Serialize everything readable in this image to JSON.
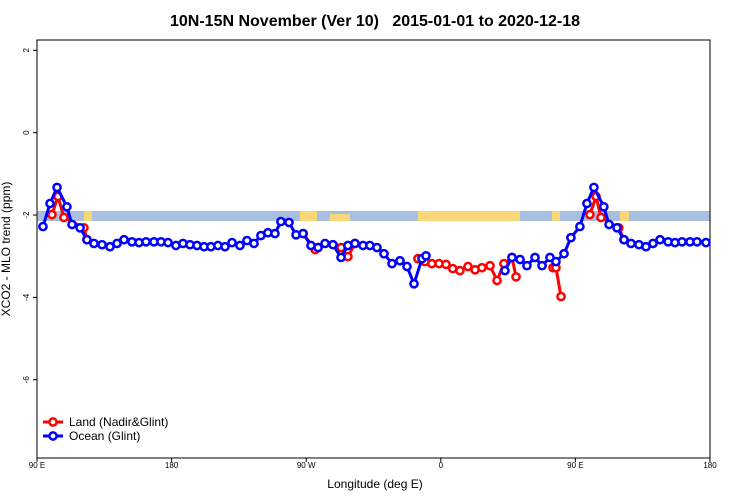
{
  "chart_data": {
    "type": "line",
    "title": "10N-15N November (Ver 10)   2015-01-01 to 2020-12-18",
    "xlabel": "Longitude (deg E)",
    "ylabel": "XCO2 - MLO trend (ppm)",
    "xlim": [
      90,
      540
    ],
    "xticks": [
      {
        "value": 90,
        "label": "90 E"
      },
      {
        "value": 180,
        "label": "180"
      },
      {
        "value": 270,
        "label": "90 W"
      },
      {
        "value": 360,
        "label": "0"
      },
      {
        "value": 450,
        "label": "90 E"
      },
      {
        "value": 540,
        "label": "180"
      }
    ],
    "ylim": [
      -7.9,
      2.25
    ],
    "yticks": [
      2,
      0,
      -2,
      -4,
      -6
    ],
    "legend": "bottom-left",
    "series": [
      {
        "name": "Land (Nadir&Glint)",
        "color": "#ff0000",
        "x": [
          100,
          104,
          108,
          121.4,
          123.4,
          150,
          268,
          276,
          278,
          285,
          293.3,
          297.9,
          302.6,
          320,
          344.7,
          349.4,
          354,
          358.8,
          363.5,
          368,
          372.8,
          378.2,
          382.9,
          387.5,
          392.9,
          397.6,
          402.2,
          407.6,
          410.3,
          420,
          435,
          437,
          440.4,
          450,
          459.7,
          463.8,
          467.1,
          479,
          482.5
        ],
        "values": [
          -1.99,
          -1.55,
          -2.06,
          -2.31,
          -2.6,
          null,
          -2.45,
          -2.84,
          -2.79,
          null,
          -2.79,
          -3.01,
          -2.69,
          null,
          -3.06,
          -3.13,
          -3.18,
          -3.18,
          -3.2,
          -3.3,
          -3.35,
          -3.25,
          -3.33,
          -3.28,
          -3.23,
          -3.59,
          -3.18,
          -3.03,
          -3.5,
          null,
          -3.28,
          -3.28,
          -3.98,
          null,
          -1.99,
          -1.55,
          -2.06,
          -2.31,
          -2.6
        ]
      },
      {
        "name": "Ocean (Glint)",
        "color": "#0000ff",
        "x": [
          94,
          98.7,
          103.4,
          110,
          113.4,
          118.8,
          123.4,
          128.1,
          133.5,
          138.8,
          143.5,
          148.2,
          153.5,
          158.2,
          162.9,
          168.2,
          172.9,
          177.6,
          182.9,
          187.6,
          192.3,
          197,
          201.7,
          206.3,
          211,
          215.7,
          220.4,
          225.7,
          230.4,
          235.1,
          239.7,
          244.4,
          249.1,
          253.1,
          258.5,
          263.2,
          267.9,
          273.2,
          277.9,
          282.6,
          287.9,
          293.3,
          297.9,
          302.6,
          308,
          312.6,
          317.3,
          322,
          327.4,
          332.7,
          337.4,
          342.1,
          347.4,
          350.1,
          375,
          402.9,
          407.6,
          413,
          417.6,
          423,
          427.7,
          433,
          437,
          442.4,
          447,
          453,
          457.7,
          462.4,
          469,
          472.5,
          477.8,
          482.5,
          487.2,
          492.5,
          497.2,
          501.9,
          506.6,
          512,
          516.6,
          521.3,
          526.6,
          531.3,
          537.3
        ],
        "values": [
          -2.28,
          -1.72,
          -1.33,
          -1.8,
          -2.23,
          -2.31,
          -2.6,
          -2.69,
          -2.72,
          -2.77,
          -2.69,
          -2.6,
          -2.65,
          -2.67,
          -2.65,
          -2.65,
          -2.65,
          -2.67,
          -2.74,
          -2.69,
          -2.72,
          -2.74,
          -2.77,
          -2.77,
          -2.74,
          -2.77,
          -2.67,
          -2.74,
          -2.62,
          -2.69,
          -2.5,
          -2.43,
          -2.45,
          -2.16,
          -2.18,
          -2.48,
          -2.45,
          -2.74,
          -2.79,
          -2.69,
          -2.72,
          -3.03,
          -2.74,
          -2.69,
          -2.74,
          -2.74,
          -2.79,
          -2.94,
          -3.18,
          -3.11,
          -3.25,
          -3.67,
          -3.06,
          -2.99,
          null,
          -3.35,
          -3.03,
          -3.08,
          -3.23,
          -3.03,
          -3.23,
          -3.03,
          -3.13,
          -2.94,
          -2.55,
          -2.28,
          -1.72,
          -1.33,
          -1.8,
          -2.23,
          -2.31,
          -2.6,
          -2.69,
          -2.72,
          -2.77,
          -2.69,
          -2.6,
          -2.65,
          -2.67,
          -2.65,
          -2.65,
          -2.65,
          -2.67
        ]
      }
    ]
  }
}
